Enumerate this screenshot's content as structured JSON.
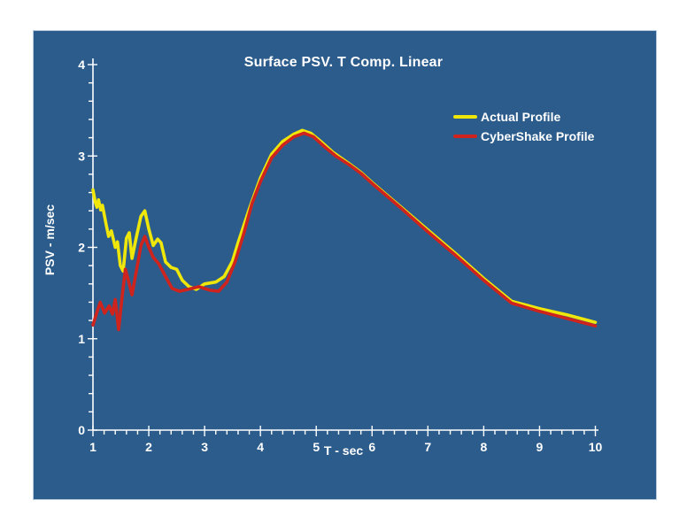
{
  "chart_data": {
    "type": "line",
    "title": "Surface PSV. T Comp. Linear",
    "xlabel": "T - sec",
    "ylabel": "PSV - m/sec",
    "xlim": [
      1,
      10
    ],
    "ylim": [
      0,
      4
    ],
    "x_major_step": 1,
    "x_minor_step": 0.2,
    "y_major_step": 1,
    "y_minor_step": 0.2,
    "grid": false,
    "legend_position": "upper-right-inside",
    "colors": {
      "plot_background": "#2b5c8c",
      "axis": "#ffffff",
      "text": "#ffffff"
    },
    "series": [
      {
        "name": "Actual Profile",
        "color": "#f0e70a",
        "points": [
          [
            1.0,
            2.63
          ],
          [
            1.04,
            2.5
          ],
          [
            1.07,
            2.44
          ],
          [
            1.1,
            2.52
          ],
          [
            1.14,
            2.41
          ],
          [
            1.17,
            2.46
          ],
          [
            1.24,
            2.24
          ],
          [
            1.28,
            2.12
          ],
          [
            1.33,
            2.18
          ],
          [
            1.4,
            2.0
          ],
          [
            1.44,
            2.06
          ],
          [
            1.49,
            1.8
          ],
          [
            1.54,
            1.74
          ],
          [
            1.6,
            2.1
          ],
          [
            1.65,
            2.16
          ],
          [
            1.7,
            1.88
          ],
          [
            1.78,
            2.12
          ],
          [
            1.86,
            2.34
          ],
          [
            1.93,
            2.4
          ],
          [
            2.0,
            2.2
          ],
          [
            2.08,
            2.02
          ],
          [
            2.16,
            2.09
          ],
          [
            2.22,
            2.05
          ],
          [
            2.3,
            1.84
          ],
          [
            2.4,
            1.78
          ],
          [
            2.5,
            1.76
          ],
          [
            2.6,
            1.64
          ],
          [
            2.72,
            1.57
          ],
          [
            2.85,
            1.54
          ],
          [
            3.0,
            1.6
          ],
          [
            3.2,
            1.62
          ],
          [
            3.35,
            1.68
          ],
          [
            3.5,
            1.85
          ],
          [
            3.6,
            2.05
          ],
          [
            3.8,
            2.42
          ],
          [
            4.0,
            2.76
          ],
          [
            4.2,
            3.02
          ],
          [
            4.4,
            3.16
          ],
          [
            4.6,
            3.24
          ],
          [
            4.75,
            3.28
          ],
          [
            4.9,
            3.25
          ],
          [
            5.1,
            3.15
          ],
          [
            5.3,
            3.04
          ],
          [
            5.6,
            2.91
          ],
          [
            5.8,
            2.82
          ],
          [
            6.0,
            2.71
          ],
          [
            6.5,
            2.45
          ],
          [
            7.0,
            2.19
          ],
          [
            7.5,
            1.93
          ],
          [
            8.0,
            1.66
          ],
          [
            8.5,
            1.41
          ],
          [
            9.0,
            1.33
          ],
          [
            9.5,
            1.26
          ],
          [
            10.0,
            1.18
          ]
        ]
      },
      {
        "name": "CyberShake Profile",
        "color": "#ce241d",
        "points": [
          [
            1.0,
            1.15
          ],
          [
            1.06,
            1.27
          ],
          [
            1.13,
            1.4
          ],
          [
            1.21,
            1.28
          ],
          [
            1.29,
            1.36
          ],
          [
            1.35,
            1.27
          ],
          [
            1.4,
            1.43
          ],
          [
            1.46,
            1.1
          ],
          [
            1.52,
            1.45
          ],
          [
            1.58,
            1.76
          ],
          [
            1.63,
            1.65
          ],
          [
            1.7,
            1.48
          ],
          [
            1.78,
            1.75
          ],
          [
            1.86,
            2.02
          ],
          [
            1.93,
            2.12
          ],
          [
            2.0,
            2.0
          ],
          [
            2.08,
            1.89
          ],
          [
            2.18,
            1.82
          ],
          [
            2.3,
            1.68
          ],
          [
            2.42,
            1.55
          ],
          [
            2.55,
            1.52
          ],
          [
            2.7,
            1.54
          ],
          [
            2.9,
            1.57
          ],
          [
            3.1,
            1.53
          ],
          [
            3.25,
            1.52
          ],
          [
            3.4,
            1.62
          ],
          [
            3.55,
            1.85
          ],
          [
            3.7,
            2.15
          ],
          [
            3.85,
            2.48
          ],
          [
            4.0,
            2.72
          ],
          [
            4.2,
            2.98
          ],
          [
            4.4,
            3.12
          ],
          [
            4.6,
            3.21
          ],
          [
            4.78,
            3.25
          ],
          [
            4.95,
            3.21
          ],
          [
            5.15,
            3.1
          ],
          [
            5.35,
            3.0
          ],
          [
            5.6,
            2.9
          ],
          [
            5.8,
            2.81
          ],
          [
            6.0,
            2.7
          ],
          [
            6.5,
            2.44
          ],
          [
            7.0,
            2.17
          ],
          [
            7.5,
            1.91
          ],
          [
            8.0,
            1.64
          ],
          [
            8.5,
            1.39
          ],
          [
            9.0,
            1.3
          ],
          [
            9.5,
            1.22
          ],
          [
            10.0,
            1.14
          ]
        ]
      }
    ]
  }
}
